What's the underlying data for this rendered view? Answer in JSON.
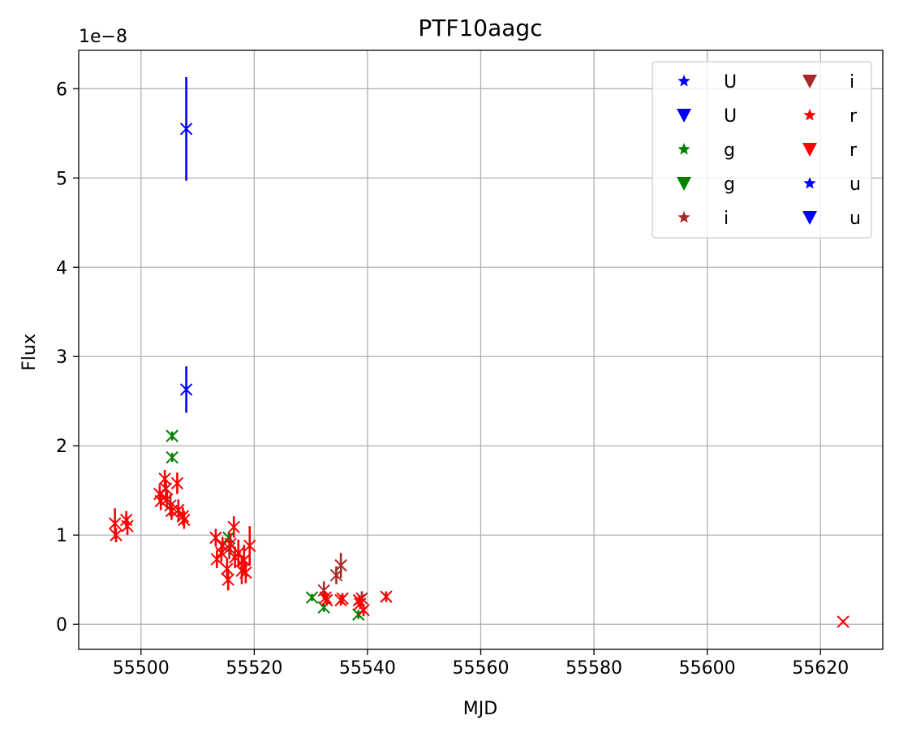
{
  "chart_data": {
    "type": "scatter",
    "title": "PTF10aagc",
    "xlabel": "MJD",
    "ylabel": "Flux",
    "y_offset_label": "1e−8",
    "y_scale": 1e-08,
    "xlim": [
      55489,
      55631
    ],
    "ylim": [
      -0.28,
      6.43
    ],
    "xticks": [
      55500,
      55520,
      55540,
      55560,
      55580,
      55600,
      55620
    ],
    "yticks": [
      0,
      1,
      2,
      3,
      4,
      5,
      6
    ],
    "grid": true,
    "legend_position": "top-right",
    "legend": [
      {
        "label": "U",
        "marker": "star",
        "color": "#0000ff"
      },
      {
        "label": "U",
        "marker": "triangle-down",
        "color": "#0000ff"
      },
      {
        "label": "g",
        "marker": "star",
        "color": "#008000"
      },
      {
        "label": "g",
        "marker": "triangle-down",
        "color": "#008000"
      },
      {
        "label": "i",
        "marker": "star",
        "color": "#a52a2a"
      },
      {
        "label": "i",
        "marker": "triangle-down",
        "color": "#a52a2a"
      },
      {
        "label": "r",
        "marker": "star",
        "color": "#ff0000"
      },
      {
        "label": "r",
        "marker": "triangle-down",
        "color": "#ff0000"
      },
      {
        "label": "u",
        "marker": "star",
        "color": "#0000ff"
      },
      {
        "label": "u",
        "marker": "triangle-down",
        "color": "#0000ff"
      }
    ],
    "series": [
      {
        "name": "U",
        "color": "#0000ff",
        "marker": "x",
        "points": [
          [
            55508.0,
            5.55,
            0.58
          ],
          [
            55508.0,
            2.63,
            0.26
          ]
        ]
      },
      {
        "name": "g",
        "color": "#008000",
        "marker": "x",
        "points": [
          [
            55505.5,
            2.11,
            0.05
          ],
          [
            55505.5,
            1.87,
            0.05
          ],
          [
            55515.5,
            0.97,
            0.06
          ],
          [
            55530.2,
            0.3,
            0.04
          ],
          [
            55532.3,
            0.19,
            0.05
          ],
          [
            55538.4,
            0.11,
            0.05
          ]
        ]
      },
      {
        "name": "i",
        "color": "#a52a2a",
        "marker": "x",
        "points": [
          [
            55505.2,
            1.33,
            0.12
          ],
          [
            55515.6,
            0.85,
            0.12
          ],
          [
            55532.3,
            0.38,
            0.1
          ],
          [
            55534.5,
            0.55,
            0.1
          ],
          [
            55535.3,
            0.66,
            0.14
          ],
          [
            55539.0,
            0.29,
            0.08
          ]
        ]
      },
      {
        "name": "r",
        "color": "#ff0000",
        "marker": "x",
        "points": [
          [
            55495.4,
            1.13,
            0.17
          ],
          [
            55495.6,
            1.0,
            0.08
          ],
          [
            55497.4,
            1.17,
            0.1
          ],
          [
            55497.6,
            1.1,
            0.1
          ],
          [
            55503.3,
            1.46,
            0.1
          ],
          [
            55503.5,
            1.38,
            0.1
          ],
          [
            55504.2,
            1.63,
            0.1
          ],
          [
            55504.4,
            1.52,
            0.1
          ],
          [
            55504.6,
            1.4,
            0.1
          ],
          [
            55505.4,
            1.27,
            0.1
          ],
          [
            55506.4,
            1.58,
            0.12
          ],
          [
            55506.6,
            1.28,
            0.12
          ],
          [
            55507.4,
            1.21,
            0.1
          ],
          [
            55507.6,
            1.17,
            0.1
          ],
          [
            55513.2,
            0.97,
            0.1
          ],
          [
            55513.4,
            0.73,
            0.1
          ],
          [
            55514.2,
            0.8,
            0.1
          ],
          [
            55514.4,
            0.88,
            0.1
          ],
          [
            55515.2,
            0.62,
            0.12
          ],
          [
            55515.4,
            0.5,
            0.12
          ],
          [
            55515.8,
            0.9,
            0.12
          ],
          [
            55516.4,
            1.09,
            0.12
          ],
          [
            55516.6,
            0.75,
            0.12
          ],
          [
            55517.2,
            0.8,
            0.15
          ],
          [
            55517.8,
            0.6,
            0.15
          ],
          [
            55518.2,
            0.72,
            0.17
          ],
          [
            55518.5,
            0.58,
            0.12
          ],
          [
            55519.2,
            0.88,
            0.22
          ],
          [
            55532.6,
            0.3,
            0.06
          ],
          [
            55532.8,
            0.27,
            0.06
          ],
          [
            55535.3,
            0.27,
            0.06
          ],
          [
            55535.6,
            0.29,
            0.06
          ],
          [
            55538.5,
            0.27,
            0.06
          ],
          [
            55538.7,
            0.23,
            0.06
          ],
          [
            55539.3,
            0.16,
            0.07
          ],
          [
            55543.3,
            0.31,
            0.06
          ],
          [
            55624.0,
            0.03,
            0.02
          ]
        ]
      }
    ]
  }
}
